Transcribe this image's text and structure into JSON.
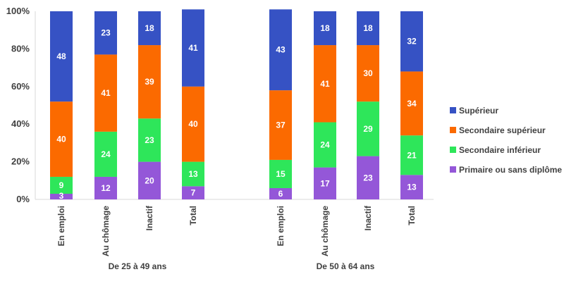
{
  "chart_data": {
    "type": "bar",
    "stacked": true,
    "normalized": true,
    "groups": [
      {
        "label": "De 25 à 49 ans",
        "categories": [
          "En emploi",
          "Au chômage",
          "Inactif",
          "Total"
        ]
      },
      {
        "label": "De 50 à 64 ans",
        "categories": [
          "En emploi",
          "Au chômage",
          "Inactif",
          "Total"
        ]
      }
    ],
    "series": [
      {
        "name": "Primaire ou sans diplôme",
        "color": "#9457d8",
        "values": [
          [
            3,
            12,
            20,
            7
          ],
          [
            6,
            17,
            23,
            13
          ]
        ]
      },
      {
        "name": "Secondaire inférieur",
        "color": "#2ee65a",
        "values": [
          [
            9,
            24,
            23,
            13
          ],
          [
            15,
            24,
            29,
            21
          ]
        ]
      },
      {
        "name": "Secondaire supérieur",
        "color": "#fb6a00",
        "values": [
          [
            40,
            41,
            39,
            40
          ],
          [
            37,
            41,
            30,
            34
          ]
        ]
      },
      {
        "name": "Supérieur",
        "color": "#3652c4",
        "values": [
          [
            48,
            23,
            18,
            41
          ],
          [
            43,
            18,
            18,
            32
          ]
        ]
      }
    ],
    "ylim": [
      0,
      100
    ],
    "yticks": [
      "0%",
      "20%",
      "40%",
      "60%",
      "80%",
      "100%"
    ],
    "legend_order": [
      "Supérieur",
      "Secondaire supérieur",
      "Secondaire inférieur",
      "Primaire ou sans diplôme"
    ],
    "legend_position": "right",
    "grid": false,
    "axis_color": "#d9d9d9",
    "text_color": "#404040"
  }
}
